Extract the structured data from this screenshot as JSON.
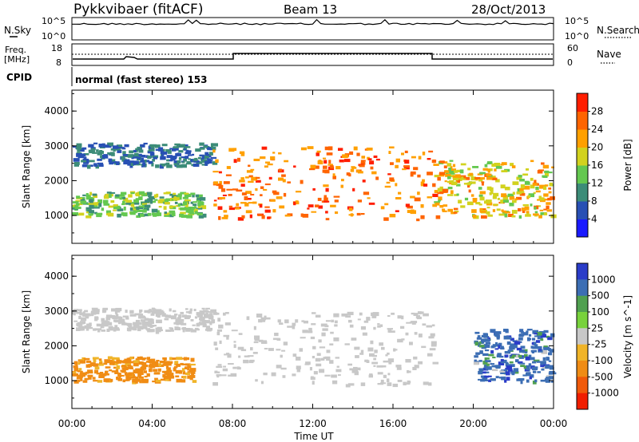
{
  "header": {
    "station": "Pykkvibaer (fitACF)",
    "beam": "Beam 13",
    "date": "28/Oct/2013"
  },
  "noise_panel": {
    "left_label": "N.Sky",
    "left_ticks": [
      "10^5",
      "10^0"
    ],
    "right_label": "N.Search",
    "right_ticks": [
      "10^5",
      "10^0"
    ]
  },
  "freq_panel": {
    "label_line1": "Freq.",
    "label_line2": "[MHz]",
    "left_ticks": [
      "18",
      "8"
    ],
    "right_label": "Nave",
    "right_ticks": [
      "60",
      "0"
    ]
  },
  "cpid": {
    "label": "CPID",
    "value": "normal (fast stereo) 153"
  },
  "chart_data": [
    {
      "type": "heatmap",
      "title": "",
      "xlabel": "Time UT",
      "ylabel": "Slant Range [km]",
      "x_ticks": [
        "00:00",
        "04:00",
        "08:00",
        "12:00",
        "16:00",
        "20:00",
        "00:00"
      ],
      "y_ticks": [
        "1000",
        "2000",
        "3000",
        "4000"
      ],
      "ylim": [
        200,
        4600
      ],
      "quantity": "Power",
      "colorbar_label": "Power [dB]",
      "colorbar_ticks": [
        "4",
        "8",
        "12",
        "16",
        "20",
        "24",
        "28"
      ],
      "colorbar_range": [
        0,
        32
      ],
      "colorbar_colors": [
        "#1a1aff",
        "#2850b4",
        "#3c8c78",
        "#64c850",
        "#d2d21e",
        "#ffa000",
        "#ff6400",
        "#ff1e00"
      ],
      "regions": [
        {
          "t0": 0.0,
          "t1": 7.0,
          "r0": 2450,
          "r1": 3100,
          "v0": 6,
          "v1": 10
        },
        {
          "t0": 0.0,
          "t1": 6.5,
          "r0": 1000,
          "r1": 1700,
          "v0": 10,
          "v1": 18
        },
        {
          "t0": 7.0,
          "t1": 18.0,
          "r0": 900,
          "r1": 3000,
          "v0": 20,
          "v1": 30
        },
        {
          "t0": 18.0,
          "t1": 23.9,
          "r0": 1000,
          "r1": 2600,
          "v0": 14,
          "v1": 26
        }
      ]
    },
    {
      "type": "heatmap",
      "title": "",
      "xlabel": "Time UT",
      "ylabel": "Slant Range [km]",
      "x_ticks": [
        "00:00",
        "04:00",
        "08:00",
        "12:00",
        "16:00",
        "20:00",
        "00:00"
      ],
      "y_ticks": [
        "1000",
        "2000",
        "3000",
        "4000"
      ],
      "ylim": [
        200,
        4600
      ],
      "quantity": "Velocity",
      "colorbar_label": "Velocity [m s^-1]",
      "colorbar_ticks": [
        "1000",
        "500",
        "100",
        "25",
        "-25",
        "-100",
        "-500",
        "-1000"
      ],
      "colorbar_colors": [
        "#2a3cc8",
        "#3c6eb4",
        "#50a050",
        "#78d23c",
        "#c8c8c8",
        "#f0b428",
        "#f08c14",
        "#f05a0a",
        "#f01e00"
      ],
      "regions": [
        {
          "t0": 0.0,
          "t1": 7.0,
          "r0": 2450,
          "r1": 3100,
          "v0": -25,
          "v1": 25
        },
        {
          "t0": 0.0,
          "t1": 6.0,
          "r0": 1000,
          "r1": 1700,
          "v0": -300,
          "v1": -60
        },
        {
          "t0": 7.0,
          "t1": 18.0,
          "r0": 900,
          "r1": 3000,
          "v0": -25,
          "v1": 25
        },
        {
          "t0": 20.0,
          "t1": 23.9,
          "r0": 1000,
          "r1": 2500,
          "v0": 0,
          "v1": 600
        }
      ]
    }
  ]
}
